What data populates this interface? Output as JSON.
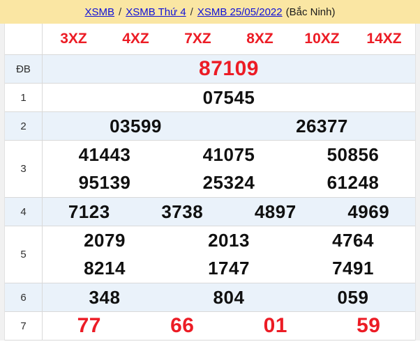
{
  "breadcrumb": {
    "links": [
      "XSMB",
      "XSMB Thứ 4",
      "XSMB 25/05/2022"
    ],
    "separator": "/",
    "suffix": "(Bắc Ninh)"
  },
  "table": {
    "headers": [
      "3XZ",
      "4XZ",
      "7XZ",
      "8XZ",
      "10XZ",
      "14XZ"
    ],
    "rows": [
      {
        "label": "ĐB",
        "highlight": true,
        "lines": [
          [
            "87109"
          ]
        ]
      },
      {
        "label": "1",
        "highlight": false,
        "lines": [
          [
            "07545"
          ]
        ]
      },
      {
        "label": "2",
        "highlight": false,
        "lines": [
          [
            "03599",
            "26377"
          ]
        ]
      },
      {
        "label": "3",
        "highlight": false,
        "lines": [
          [
            "41443",
            "41075",
            "50856"
          ],
          [
            "95139",
            "25324",
            "61248"
          ]
        ]
      },
      {
        "label": "4",
        "highlight": false,
        "lines": [
          [
            "7123",
            "3738",
            "4897",
            "4969"
          ]
        ]
      },
      {
        "label": "5",
        "highlight": false,
        "lines": [
          [
            "2079",
            "2013",
            "4764"
          ],
          [
            "8214",
            "1747",
            "7491"
          ]
        ]
      },
      {
        "label": "6",
        "highlight": false,
        "lines": [
          [
            "348",
            "804",
            "059"
          ]
        ]
      },
      {
        "label": "7",
        "highlight": true,
        "lines": [
          [
            "77",
            "66",
            "01",
            "59"
          ]
        ]
      }
    ]
  },
  "colors": {
    "bar_yellow": "#fae6a3",
    "row_blue": "#eaf2fa",
    "accent_red": "#ec1c25",
    "link_blue": "#0f10d8",
    "border_gray": "#d9d9d9"
  }
}
